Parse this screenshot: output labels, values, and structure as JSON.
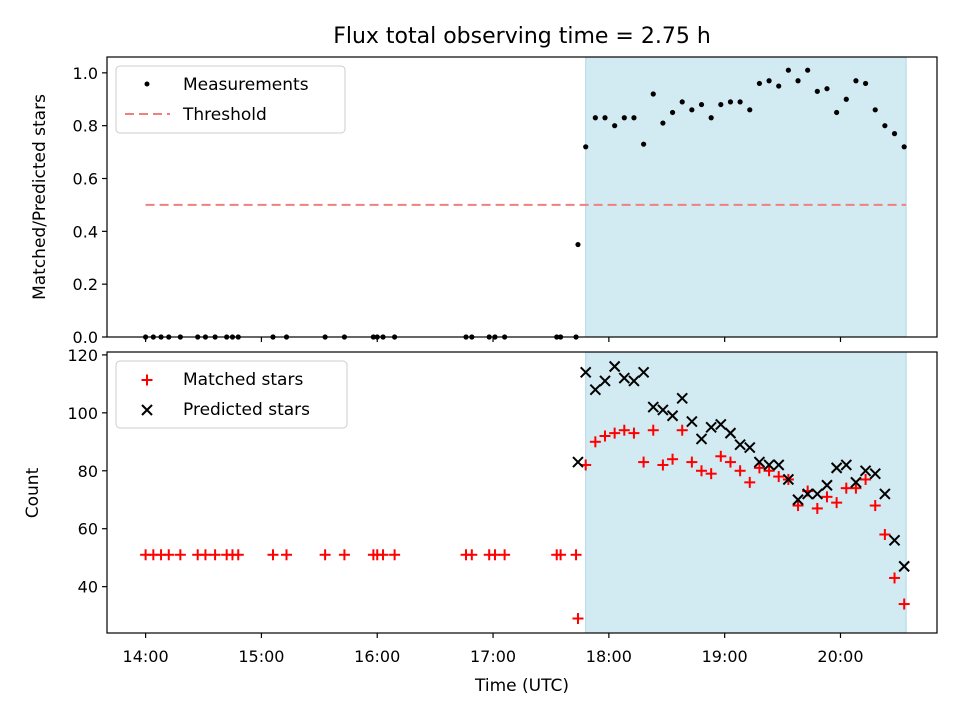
{
  "title": "Flux total observing time = 2.75 h",
  "colors": {
    "shade": "#add8e6",
    "threshold": "#f08080",
    "matched": "#ff0000",
    "predicted": "#000000",
    "measurement": "#000000"
  },
  "chart_data": [
    {
      "type": "scatter",
      "ylabel": "Matched/Predicted stars",
      "xlim": [
        "13:40",
        "20:50"
      ],
      "ylim": [
        0,
        1.06
      ],
      "yticks": [
        "0.0",
        "0.2",
        "0.4",
        "0.6",
        "0.8",
        "1.0"
      ],
      "shaded_interval": [
        "17:48",
        "20:34"
      ],
      "legend": {
        "placement": "top-left",
        "entries": [
          "Measurements",
          "Threshold"
        ]
      },
      "threshold": {
        "name": "Threshold",
        "y": 0.5,
        "x_range": [
          "14:00",
          "20:34"
        ]
      },
      "series": [
        {
          "name": "Measurements",
          "marker": "dot",
          "points": [
            [
              "14:00",
              0.0
            ],
            [
              "14:04",
              0.0
            ],
            [
              "14:08",
              0.0
            ],
            [
              "14:12",
              0.0
            ],
            [
              "14:18",
              0.0
            ],
            [
              "14:27",
              0.0
            ],
            [
              "14:31",
              0.0
            ],
            [
              "14:36",
              0.0
            ],
            [
              "14:42",
              0.0
            ],
            [
              "14:45",
              0.0
            ],
            [
              "14:48",
              0.0
            ],
            [
              "15:06",
              0.0
            ],
            [
              "15:13",
              0.0
            ],
            [
              "15:33",
              0.0
            ],
            [
              "15:43",
              0.0
            ],
            [
              "15:58",
              0.0
            ],
            [
              "16:00",
              0.0
            ],
            [
              "16:03",
              0.0
            ],
            [
              "16:09",
              0.0
            ],
            [
              "16:46",
              0.0
            ],
            [
              "16:49",
              0.0
            ],
            [
              "16:58",
              0.0
            ],
            [
              "17:01",
              0.0
            ],
            [
              "17:06",
              0.0
            ],
            [
              "17:33",
              0.0
            ],
            [
              "17:35",
              0.0
            ],
            [
              "17:43",
              0.0
            ],
            [
              "17:44",
              0.35
            ],
            [
              "17:48",
              0.72
            ],
            [
              "17:53",
              0.83
            ],
            [
              "17:58",
              0.83
            ],
            [
              "18:03",
              0.8
            ],
            [
              "18:08",
              0.83
            ],
            [
              "18:13",
              0.83
            ],
            [
              "18:18",
              0.73
            ],
            [
              "18:23",
              0.92
            ],
            [
              "18:28",
              0.81
            ],
            [
              "18:33",
              0.85
            ],
            [
              "18:38",
              0.89
            ],
            [
              "18:43",
              0.86
            ],
            [
              "18:48",
              0.88
            ],
            [
              "18:53",
              0.83
            ],
            [
              "18:58",
              0.88
            ],
            [
              "19:03",
              0.89
            ],
            [
              "19:08",
              0.89
            ],
            [
              "19:13",
              0.86
            ],
            [
              "19:18",
              0.96
            ],
            [
              "19:23",
              0.97
            ],
            [
              "19:28",
              0.95
            ],
            [
              "19:33",
              1.01
            ],
            [
              "19:38",
              0.97
            ],
            [
              "19:43",
              1.01
            ],
            [
              "19:48",
              0.93
            ],
            [
              "19:53",
              0.94
            ],
            [
              "19:58",
              0.85
            ],
            [
              "20:03",
              0.9
            ],
            [
              "20:08",
              0.97
            ],
            [
              "20:13",
              0.96
            ],
            [
              "20:18",
              0.86
            ],
            [
              "20:23",
              0.8
            ],
            [
              "20:28",
              0.77
            ],
            [
              "20:33",
              0.72
            ]
          ]
        }
      ]
    },
    {
      "type": "scatter",
      "xlabel": "Time (UTC)",
      "ylabel": "Count",
      "xlim": [
        "13:40",
        "20:50"
      ],
      "ylim": [
        24,
        121
      ],
      "xticks": [
        "14:00",
        "15:00",
        "16:00",
        "17:00",
        "18:00",
        "19:00",
        "20:00"
      ],
      "yticks": [
        "40",
        "60",
        "80",
        "100",
        "120"
      ],
      "shaded_interval": [
        "17:48",
        "20:34"
      ],
      "legend": {
        "placement": "top-left",
        "entries": [
          "Matched stars",
          "Predicted stars"
        ]
      },
      "series": [
        {
          "name": "Matched stars",
          "marker": "plus",
          "points": [
            [
              "14:00",
              51
            ],
            [
              "14:04",
              51
            ],
            [
              "14:08",
              51
            ],
            [
              "14:12",
              51
            ],
            [
              "14:18",
              51
            ],
            [
              "14:27",
              51
            ],
            [
              "14:31",
              51
            ],
            [
              "14:36",
              51
            ],
            [
              "14:42",
              51
            ],
            [
              "14:45",
              51
            ],
            [
              "14:48",
              51
            ],
            [
              "15:06",
              51
            ],
            [
              "15:13",
              51
            ],
            [
              "15:33",
              51
            ],
            [
              "15:43",
              51
            ],
            [
              "15:58",
              51
            ],
            [
              "16:00",
              51
            ],
            [
              "16:03",
              51
            ],
            [
              "16:09",
              51
            ],
            [
              "16:46",
              51
            ],
            [
              "16:49",
              51
            ],
            [
              "16:58",
              51
            ],
            [
              "17:01",
              51
            ],
            [
              "17:06",
              51
            ],
            [
              "17:33",
              51
            ],
            [
              "17:35",
              51
            ],
            [
              "17:43",
              51
            ],
            [
              "17:44",
              29
            ],
            [
              "17:48",
              82
            ],
            [
              "17:53",
              90
            ],
            [
              "17:58",
              92
            ],
            [
              "18:03",
              93
            ],
            [
              "18:08",
              94
            ],
            [
              "18:13",
              93
            ],
            [
              "18:18",
              83
            ],
            [
              "18:23",
              94
            ],
            [
              "18:28",
              82
            ],
            [
              "18:33",
              84
            ],
            [
              "18:38",
              94
            ],
            [
              "18:43",
              83
            ],
            [
              "18:48",
              80
            ],
            [
              "18:53",
              79
            ],
            [
              "18:58",
              85
            ],
            [
              "19:03",
              83
            ],
            [
              "19:08",
              80
            ],
            [
              "19:13",
              76
            ],
            [
              "19:18",
              81
            ],
            [
              "19:23",
              80
            ],
            [
              "19:28",
              78
            ],
            [
              "19:33",
              77
            ],
            [
              "19:38",
              68
            ],
            [
              "19:43",
              73
            ],
            [
              "19:48",
              67
            ],
            [
              "19:53",
              71
            ],
            [
              "19:58",
              69
            ],
            [
              "20:03",
              74
            ],
            [
              "20:08",
              74
            ],
            [
              "20:13",
              77
            ],
            [
              "20:18",
              68
            ],
            [
              "20:23",
              58
            ],
            [
              "20:28",
              43
            ],
            [
              "20:33",
              34
            ]
          ]
        },
        {
          "name": "Predicted stars",
          "marker": "x",
          "points": [
            [
              "17:44",
              83
            ],
            [
              "17:48",
              114
            ],
            [
              "17:53",
              108
            ],
            [
              "17:58",
              111
            ],
            [
              "18:03",
              116
            ],
            [
              "18:08",
              112
            ],
            [
              "18:13",
              111
            ],
            [
              "18:18",
              114
            ],
            [
              "18:23",
              102
            ],
            [
              "18:28",
              101
            ],
            [
              "18:33",
              99
            ],
            [
              "18:38",
              105
            ],
            [
              "18:43",
              97
            ],
            [
              "18:48",
              91
            ],
            [
              "18:53",
              95
            ],
            [
              "18:58",
              96
            ],
            [
              "19:03",
              93
            ],
            [
              "19:08",
              89
            ],
            [
              "19:13",
              88
            ],
            [
              "19:18",
              83
            ],
            [
              "19:23",
              82
            ],
            [
              "19:28",
              82
            ],
            [
              "19:33",
              77
            ],
            [
              "19:38",
              70
            ],
            [
              "19:43",
              72
            ],
            [
              "19:48",
              72
            ],
            [
              "19:53",
              75
            ],
            [
              "19:58",
              81
            ],
            [
              "20:03",
              82
            ],
            [
              "20:08",
              76
            ],
            [
              "20:13",
              80
            ],
            [
              "20:18",
              79
            ],
            [
              "20:23",
              72
            ],
            [
              "20:28",
              56
            ],
            [
              "20:33",
              47
            ]
          ]
        }
      ]
    }
  ]
}
